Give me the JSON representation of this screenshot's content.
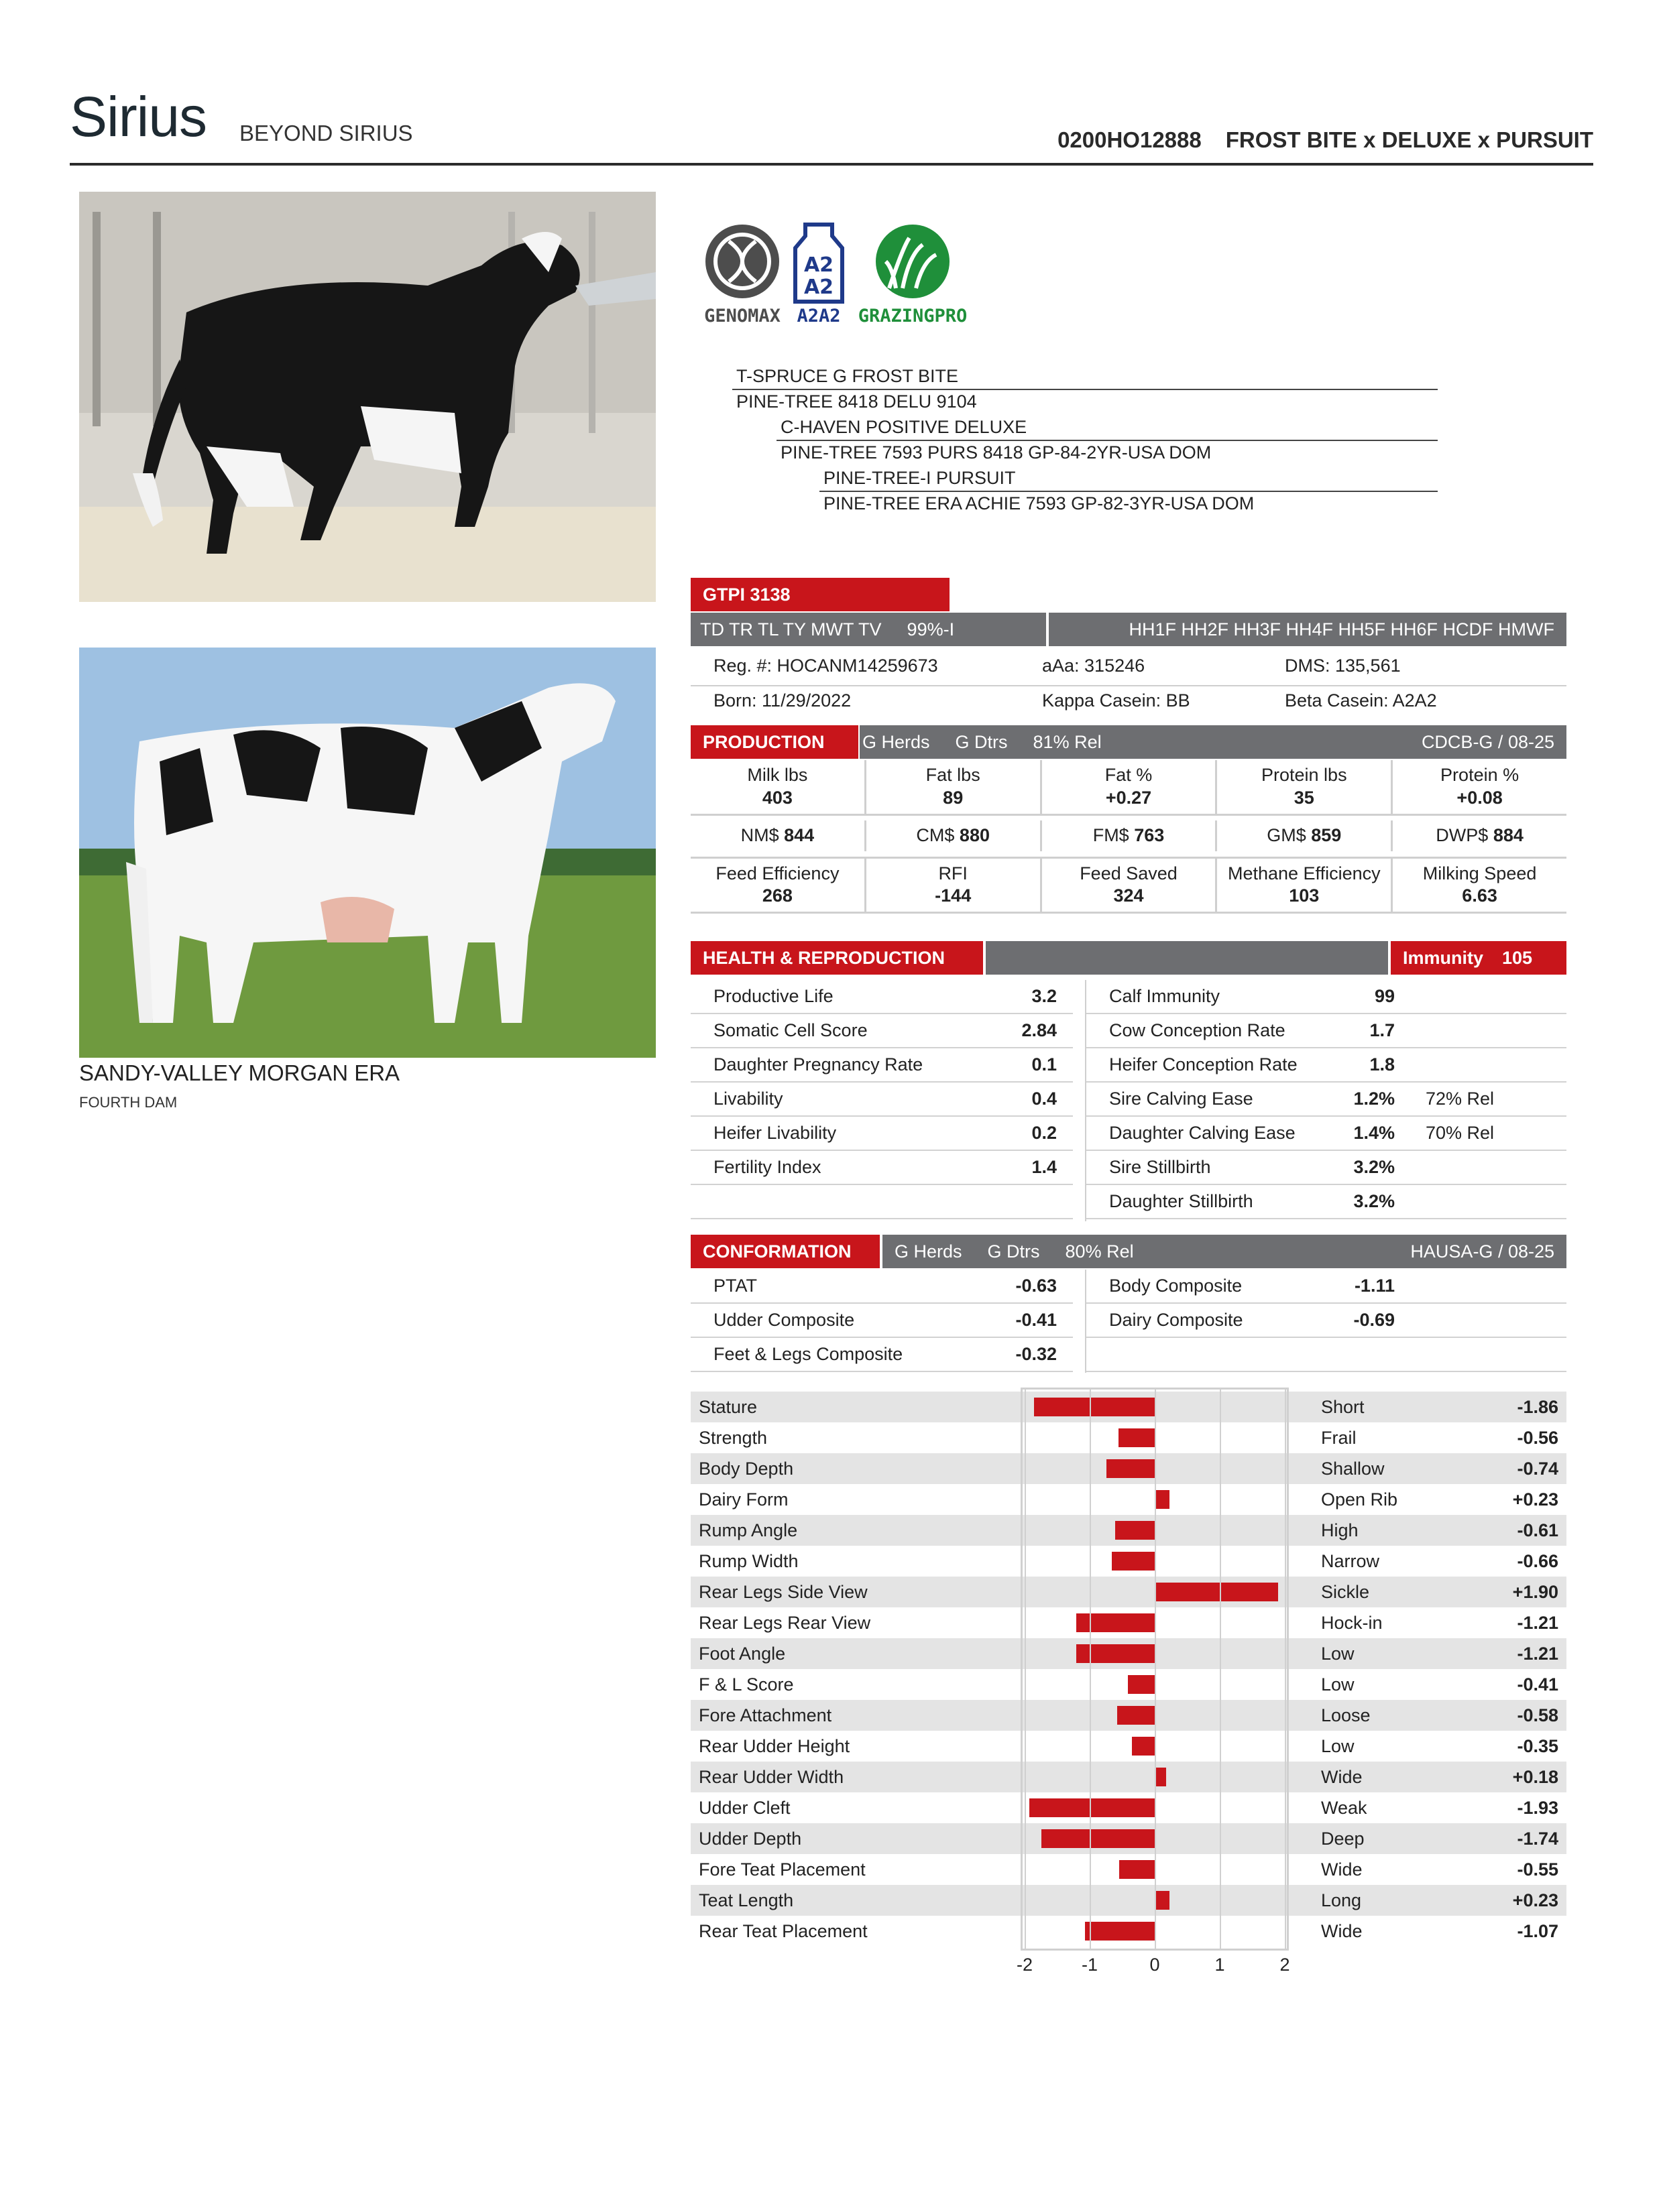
{
  "header": {
    "name": "Sirius",
    "full_name": "BEYOND SIRIUS",
    "code": "0200HO12888",
    "pedigree": "FROST BITE x DELUXE x PURSUIT"
  },
  "photos": {
    "dam_name": "SANDY-VALLEY MORGAN ERA",
    "dam_label": "FOURTH DAM"
  },
  "logos": [
    {
      "label": "GENOMAX",
      "color": "#4d4d4d"
    },
    {
      "label": "A2A2",
      "color": "#1f3a8a"
    },
    {
      "label": "GRAZINGPRO",
      "color": "#1f8f3a"
    }
  ],
  "pedigree_lines": [
    "T-SPRUCE G FROST BITE",
    "PINE-TREE 8418 DELU 9104",
    "C-HAVEN POSITIVE DELUXE",
    "PINE-TREE 7593 PURS 8418 GP-84-2YR-USA DOM",
    "PINE-TREE-I PURSUIT",
    "PINE-TREE ERA ACHIE 7593 GP-82-3YR-USA DOM"
  ],
  "gtpi": "GTPI 3138",
  "haplo_left": "TD TR TL TY MWT TV",
  "haplo_pct": "99%-I",
  "haplo_right": "HH1F HH2F HH3F HH4F HH5F HH6F HCDF HMWF",
  "info": {
    "reg": "Reg. #: HOCANM14259673",
    "aaa": "aAa: 315246",
    "dms": "DMS: 135,561",
    "born": "Born: 11/29/2022",
    "kappa": "Kappa Casein: BB",
    "beta": "Beta Casein: A2A2"
  },
  "production": {
    "title": "PRODUCTION",
    "herds": "G Herds",
    "dtrs": "G Dtrs",
    "rel": "81% Rel",
    "source": "CDCB-G / 08-25",
    "row1": [
      {
        "label": "Milk lbs",
        "value": "403"
      },
      {
        "label": "Fat lbs",
        "value": "89"
      },
      {
        "label": "Fat %",
        "value": "+0.27"
      },
      {
        "label": "Protein lbs",
        "value": "35"
      },
      {
        "label": "Protein %",
        "value": "+0.08"
      }
    ],
    "row2": [
      {
        "label": "NM$",
        "value": "844"
      },
      {
        "label": "CM$",
        "value": "880"
      },
      {
        "label": "FM$",
        "value": "763"
      },
      {
        "label": "GM$",
        "value": "859"
      },
      {
        "label": "DWP$",
        "value": "884"
      }
    ],
    "row3": [
      {
        "label": "Feed Efficiency",
        "value": "268"
      },
      {
        "label": "RFI",
        "value": "-144"
      },
      {
        "label": "Feed Saved",
        "value": "324"
      },
      {
        "label": "Methane Efficiency",
        "value": "103"
      },
      {
        "label": "Milking Speed",
        "value": "6.63"
      }
    ]
  },
  "health": {
    "title": "HEALTH & REPRODUCTION",
    "immunity_label": "Immunity",
    "immunity_value": "105",
    "left": [
      {
        "label": "Productive Life",
        "value": "3.2"
      },
      {
        "label": "Somatic Cell Score",
        "value": "2.84"
      },
      {
        "label": "Daughter Pregnancy Rate",
        "value": "0.1"
      },
      {
        "label": "Livability",
        "value": "0.4"
      },
      {
        "label": "Heifer Livability",
        "value": "0.2"
      },
      {
        "label": "Fertility Index",
        "value": "1.4"
      }
    ],
    "right": [
      {
        "label": "Calf Immunity",
        "value": "99",
        "rel": ""
      },
      {
        "label": "Cow Conception Rate",
        "value": "1.7",
        "rel": ""
      },
      {
        "label": "Heifer Conception Rate",
        "value": "1.8",
        "rel": ""
      },
      {
        "label": "Sire Calving Ease",
        "value": "1.2%",
        "rel": "72% Rel"
      },
      {
        "label": "Daughter Calving Ease",
        "value": "1.4%",
        "rel": "70% Rel"
      },
      {
        "label": "Sire Stillbirth",
        "value": "3.2%",
        "rel": ""
      },
      {
        "label": "Daughter Stillbirth",
        "value": "3.2%",
        "rel": ""
      }
    ]
  },
  "conformation": {
    "title": "CONFORMATION",
    "herds": "G Herds",
    "dtrs": "G Dtrs",
    "rel": "80% Rel",
    "source": "HAUSA-G / 08-25",
    "left": [
      {
        "label": "PTAT",
        "value": "-0.63"
      },
      {
        "label": "Udder Composite",
        "value": "-0.41"
      },
      {
        "label": "Feet & Legs Composite",
        "value": "-0.32"
      }
    ],
    "right": [
      {
        "label": "Body Composite",
        "value": "-1.11"
      },
      {
        "label": "Dairy Composite",
        "value": "-0.69"
      }
    ]
  },
  "chart_data": {
    "type": "bar",
    "orientation": "horizontal",
    "xlim": [
      -2,
      2
    ],
    "xticks": [
      "-2",
      "-1",
      "0",
      "1",
      "2"
    ],
    "traits": [
      {
        "trait": "Stature",
        "desc": "Short",
        "value": -1.86,
        "label": "-1.86"
      },
      {
        "trait": "Strength",
        "desc": "Frail",
        "value": -0.56,
        "label": "-0.56"
      },
      {
        "trait": "Body Depth",
        "desc": "Shallow",
        "value": -0.74,
        "label": "-0.74"
      },
      {
        "trait": "Dairy Form",
        "desc": "Open Rib",
        "value": 0.23,
        "label": "+0.23"
      },
      {
        "trait": "Rump Angle",
        "desc": "High",
        "value": -0.61,
        "label": "-0.61"
      },
      {
        "trait": "Rump Width",
        "desc": "Narrow",
        "value": -0.66,
        "label": "-0.66"
      },
      {
        "trait": "Rear Legs Side View",
        "desc": "Sickle",
        "value": 1.9,
        "label": "+1.90"
      },
      {
        "trait": "Rear Legs Rear View",
        "desc": "Hock-in",
        "value": -1.21,
        "label": "-1.21"
      },
      {
        "trait": "Foot Angle",
        "desc": "Low",
        "value": -1.21,
        "label": "-1.21"
      },
      {
        "trait": "F & L Score",
        "desc": "Low",
        "value": -0.41,
        "label": "-0.41"
      },
      {
        "trait": "Fore Attachment",
        "desc": "Loose",
        "value": -0.58,
        "label": "-0.58"
      },
      {
        "trait": "Rear Udder Height",
        "desc": "Low",
        "value": -0.35,
        "label": "-0.35"
      },
      {
        "trait": "Rear Udder Width",
        "desc": "Wide",
        "value": 0.18,
        "label": "+0.18"
      },
      {
        "trait": "Udder Cleft",
        "desc": "Weak",
        "value": -1.93,
        "label": "-1.93"
      },
      {
        "trait": "Udder Depth",
        "desc": "Deep",
        "value": -1.74,
        "label": "-1.74"
      },
      {
        "trait": "Fore Teat Placement",
        "desc": "Wide",
        "value": -0.55,
        "label": "-0.55"
      },
      {
        "trait": "Teat Length",
        "desc": "Long",
        "value": 0.23,
        "label": "+0.23"
      },
      {
        "trait": "Rear Teat Placement",
        "desc": "Wide",
        "value": -1.07,
        "label": "-1.07"
      }
    ]
  },
  "colors": {
    "accent": "#c8151b",
    "gray_bar": "#6d6e71",
    "shade": "#e4e4e4"
  }
}
